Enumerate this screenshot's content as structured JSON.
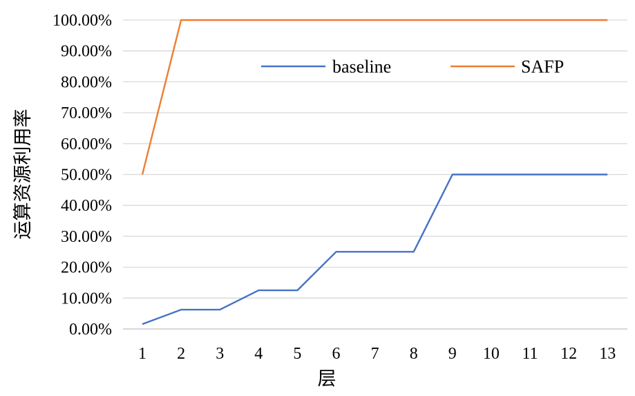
{
  "chart_data": {
    "type": "line",
    "title": "",
    "xlabel": "层",
    "ylabel": "运算资源利用率",
    "categories": [
      "1",
      "2",
      "3",
      "4",
      "5",
      "6",
      "7",
      "8",
      "9",
      "10",
      "11",
      "12",
      "13"
    ],
    "ylim": [
      0,
      100
    ],
    "ytick_values": [
      0,
      10,
      20,
      30,
      40,
      50,
      60,
      70,
      80,
      90,
      100
    ],
    "ytick_labels": [
      "0.00%",
      "10.00%",
      "20.00%",
      "30.00%",
      "40.00%",
      "50.00%",
      "60.00%",
      "70.00%",
      "80.00%",
      "90.00%",
      "100.00%"
    ],
    "grid": true,
    "legend_position": "top",
    "series": [
      {
        "name": "baseline",
        "color": "#4472c4",
        "values": [
          1.5625,
          6.25,
          6.25,
          12.5,
          12.5,
          25,
          25,
          25,
          50,
          50,
          50,
          50,
          50
        ]
      },
      {
        "name": "SAFP",
        "color": "#ed7d31",
        "values": [
          50,
          100,
          100,
          100,
          100,
          100,
          100,
          100,
          100,
          100,
          100,
          100,
          100
        ]
      }
    ]
  }
}
